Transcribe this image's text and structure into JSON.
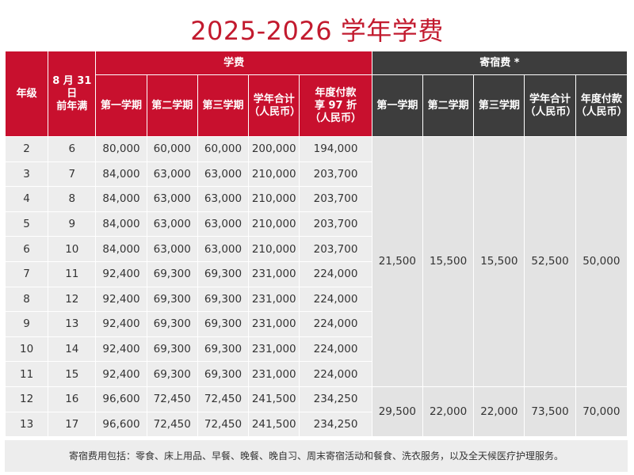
{
  "title": "2025-2026 学年学费",
  "headers": {
    "grade": "年级",
    "age_line1": "8 月 31 日",
    "age_line2": "前年满",
    "tuition_group": "学费",
    "boarding_group": "寄宿费 *",
    "tuition_cols": [
      [
        "第一学期"
      ],
      [
        "第二学期"
      ],
      [
        "第三学期"
      ],
      [
        "学年合计",
        "（人民币）"
      ],
      [
        "年度付款",
        "享 97 折",
        "（人民币）"
      ]
    ],
    "boarding_cols": [
      [
        "第一学期"
      ],
      [
        "第二学期"
      ],
      [
        "第三学期"
      ],
      [
        "学年合计",
        "（人民币）"
      ],
      [
        "年度付款",
        "（人民币）"
      ]
    ]
  },
  "rows": [
    [
      "2",
      "6",
      "80,000",
      "60,000",
      "60,000",
      "200,000",
      "194,000"
    ],
    [
      "3",
      "7",
      "84,000",
      "63,000",
      "63,000",
      "210,000",
      "203,700"
    ],
    [
      "4",
      "8",
      "84,000",
      "63,000",
      "63,000",
      "210,000",
      "203,700"
    ],
    [
      "5",
      "9",
      "84,000",
      "63,000",
      "63,000",
      "210,000",
      "203,700"
    ],
    [
      "6",
      "10",
      "84,000",
      "63,000",
      "63,000",
      "210,000",
      "203,700"
    ],
    [
      "7",
      "11",
      "92,400",
      "69,300",
      "69,300",
      "231,000",
      "224,000"
    ],
    [
      "8",
      "12",
      "92,400",
      "69,300",
      "69,300",
      "231,000",
      "224,000"
    ],
    [
      "9",
      "13",
      "92,400",
      "69,300",
      "69,300",
      "231,000",
      "224,000"
    ],
    [
      "10",
      "14",
      "92,400",
      "69,300",
      "69,300",
      "231,000",
      "224,000"
    ],
    [
      "11",
      "15",
      "92,400",
      "69,300",
      "69,300",
      "231,000",
      "224,000"
    ],
    [
      "12",
      "16",
      "96,600",
      "72,450",
      "72,450",
      "241,500",
      "234,250"
    ],
    [
      "13",
      "17",
      "96,600",
      "72,450",
      "72,450",
      "241,500",
      "234,250"
    ]
  ],
  "boarding_groups": [
    {
      "rowspan": 10,
      "values": [
        "21,500",
        "15,500",
        "15,500",
        "52,500",
        "50,000"
      ]
    },
    {
      "rowspan": 2,
      "values": [
        "29,500",
        "22,000",
        "22,000",
        "73,500",
        "70,000"
      ]
    }
  ],
  "footer": "寄宿费用包括：零食、床上用品、早餐、晚餐、晚自习、周末寄宿活动和餐食、洗衣服务，以及全天候医疗护理服务。",
  "colors": {
    "title": "#c21a2e",
    "tuition_header": "#c8102e",
    "boarding_header": "#3d3d3d",
    "cell_bg": "#ededed"
  }
}
